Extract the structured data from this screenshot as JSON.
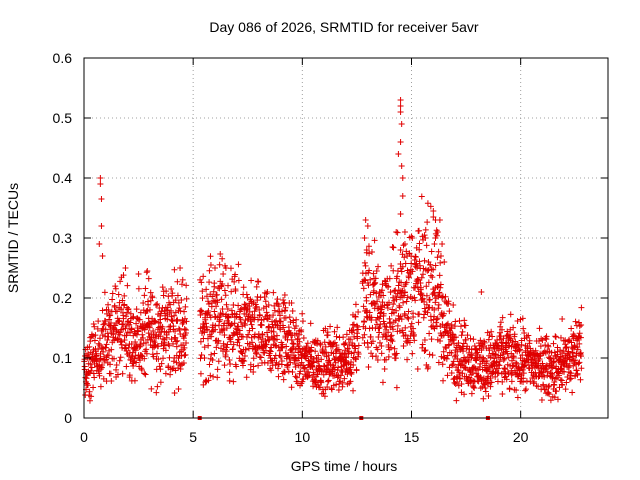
{
  "chart_data": {
    "type": "scatter",
    "title": "Day 086 of 2026, SRMTID for receiver 5avr",
    "xlabel": "GPS time / hours",
    "ylabel": "SRMTID / TECUs",
    "xlim": [
      0,
      24
    ],
    "ylim": [
      0,
      0.6
    ],
    "xticks": [
      0,
      5,
      10,
      15,
      20
    ],
    "yticks": [
      0,
      0.1,
      0.2,
      0.3,
      0.4,
      0.5,
      0.6
    ],
    "grid": true,
    "marker": "plus",
    "color": "#e00000",
    "trend": [
      [
        0.0,
        0.09
      ],
      [
        0.5,
        0.1
      ],
      [
        0.8,
        0.11
      ],
      [
        1.0,
        0.13
      ],
      [
        1.5,
        0.15
      ],
      [
        2.0,
        0.14
      ],
      [
        2.5,
        0.13
      ],
      [
        3.0,
        0.15
      ],
      [
        3.5,
        0.14
      ],
      [
        4.0,
        0.15
      ],
      [
        4.6,
        0.15
      ],
      [
        5.4,
        0.15
      ],
      [
        6.0,
        0.17
      ],
      [
        6.5,
        0.16
      ],
      [
        7.0,
        0.15
      ],
      [
        7.5,
        0.14
      ],
      [
        8.0,
        0.14
      ],
      [
        8.5,
        0.13
      ],
      [
        9.0,
        0.14
      ],
      [
        9.5,
        0.12
      ],
      [
        10.0,
        0.1
      ],
      [
        10.5,
        0.09
      ],
      [
        11.0,
        0.09
      ],
      [
        11.5,
        0.1
      ],
      [
        12.0,
        0.1
      ],
      [
        12.5,
        0.12
      ],
      [
        12.8,
        0.19
      ],
      [
        13.5,
        0.18
      ],
      [
        14.0,
        0.16
      ],
      [
        14.5,
        0.2
      ],
      [
        15.0,
        0.21
      ],
      [
        15.5,
        0.22
      ],
      [
        16.0,
        0.21
      ],
      [
        16.5,
        0.15
      ],
      [
        17.0,
        0.11
      ],
      [
        17.5,
        0.1
      ],
      [
        18.0,
        0.09
      ],
      [
        18.5,
        0.09
      ],
      [
        19.0,
        0.1
      ],
      [
        19.5,
        0.1
      ],
      [
        20.0,
        0.1
      ],
      [
        20.5,
        0.09
      ],
      [
        21.0,
        0.09
      ],
      [
        21.5,
        0.08
      ],
      [
        22.0,
        0.09
      ],
      [
        22.5,
        0.11
      ],
      [
        22.8,
        0.12
      ]
    ],
    "gaps": [
      [
        4.7,
        5.3
      ],
      [
        12.6,
        12.75
      ]
    ],
    "spike_points": [
      [
        0.75,
        0.4
      ],
      [
        0.75,
        0.39
      ],
      [
        0.8,
        0.365
      ],
      [
        0.8,
        0.32
      ],
      [
        0.7,
        0.29
      ],
      [
        0.85,
        0.27
      ],
      [
        14.5,
        0.53
      ],
      [
        14.5,
        0.52
      ],
      [
        14.5,
        0.51
      ],
      [
        14.55,
        0.49
      ],
      [
        14.5,
        0.46
      ],
      [
        14.4,
        0.44
      ],
      [
        14.55,
        0.42
      ],
      [
        14.6,
        0.4
      ],
      [
        14.6,
        0.37
      ],
      [
        14.5,
        0.34
      ],
      [
        14.7,
        0.31
      ],
      [
        14.7,
        0.29
      ],
      [
        14.5,
        0.28
      ],
      [
        14.8,
        0.27
      ],
      [
        14.3,
        0.31
      ],
      [
        12.9,
        0.33
      ],
      [
        13.0,
        0.32
      ],
      [
        12.85,
        0.3
      ],
      [
        12.95,
        0.28
      ],
      [
        16.0,
        0.345
      ],
      [
        16.0,
        0.335
      ],
      [
        16.1,
        0.33
      ],
      [
        16.3,
        0.33
      ],
      [
        16.2,
        0.31
      ],
      [
        16.1,
        0.3
      ],
      [
        16.4,
        0.29
      ],
      [
        16.35,
        0.27
      ],
      [
        16.5,
        0.26
      ],
      [
        2.9,
        0.245
      ],
      [
        2.5,
        0.24
      ],
      [
        1.9,
        0.25
      ],
      [
        4.4,
        0.25
      ],
      [
        6.0,
        0.25
      ],
      [
        6.5,
        0.25
      ],
      [
        8.4,
        0.21
      ],
      [
        9.2,
        0.205
      ],
      [
        18.2,
        0.21
      ],
      [
        21.9,
        0.165
      ]
    ],
    "baseline_markers": [
      5.3,
      12.7,
      18.5
    ]
  }
}
